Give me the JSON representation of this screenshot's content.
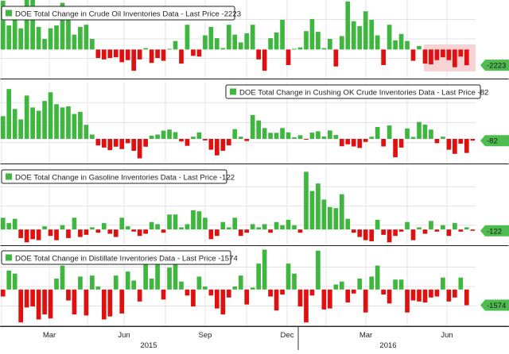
{
  "colors": {
    "positive": "#3fb73f",
    "negative": "#e01010",
    "highlight": "#f8d3d5",
    "grid": "#e3e3e3",
    "panel_border": "#1a1a1a",
    "text": "#222222",
    "badge_bg": "#4ebc4e",
    "badge_text": "#1a1a1a"
  },
  "x_axis": {
    "month_labels": [
      "Mar",
      "Jun",
      "Sep",
      "Dec",
      "Mar",
      "Jun"
    ],
    "year_labels": [
      "2015",
      "2016"
    ]
  },
  "chart_data": [
    {
      "type": "bar",
      "id": "crude",
      "title": "DOE Total Change in Crude Oil Inventories Data - Last Price -2223",
      "last_price_label": "-2223",
      "ylim": [
        -4000,
        7000
      ],
      "highlight_range": [
        49,
        55
      ],
      "values": [
        6900,
        3400,
        5500,
        3000,
        7000,
        7100,
        3200,
        1500,
        3000,
        3400,
        6600,
        4500,
        2100,
        3200,
        3500,
        1500,
        -1200,
        -1400,
        -1200,
        -1100,
        -1800,
        -1500,
        -3000,
        -1400,
        200,
        -1900,
        -1200,
        -1600,
        100,
        1200,
        -2000,
        3500,
        -900,
        -1000,
        2000,
        3200,
        1600,
        200,
        3500,
        2100,
        1000,
        2300,
        3500,
        -1400,
        -3000,
        1600,
        2400,
        4200,
        -2200,
        100,
        300,
        2600,
        4300,
        2500,
        200,
        1500,
        -2400,
        1900,
        6800,
        4000,
        3300,
        5400,
        4200,
        2000,
        -2200,
        3500,
        1300,
        2200,
        1200,
        -1600,
        500,
        -2000,
        -2100,
        -1500,
        -1100,
        -1500,
        -2500,
        -1000,
        -2223
      ]
    },
    {
      "type": "bar",
      "id": "cushing",
      "title": "DOE Total Change in Cushing OK Crude Inventories Data - Last Price -82",
      "last_price_label": "-82",
      "ylim": [
        -1100,
        2600
      ],
      "values": [
        1050,
        2300,
        1380,
        900,
        2000,
        1450,
        1300,
        1750,
        2150,
        1600,
        1450,
        1500,
        1150,
        1250,
        650,
        200,
        -300,
        -400,
        -520,
        -360,
        -470,
        -200,
        -550,
        -900,
        -360,
        150,
        200,
        380,
        430,
        310,
        -120,
        -320,
        100,
        300,
        -70,
        -500,
        -760,
        -550,
        -300,
        450,
        100,
        -100,
        1100,
        850,
        500,
        280,
        280,
        500,
        300,
        70,
        170,
        -40,
        290,
        350,
        110,
        390,
        180,
        -340,
        -250,
        -350,
        -420,
        -140,
        100,
        550,
        -350,
        620,
        -850,
        -400,
        480,
        90,
        780,
        660,
        430,
        -200,
        100,
        -500,
        -690,
        -220,
        -650,
        -82
      ]
    },
    {
      "type": "bar",
      "id": "gasoline",
      "title": "DOE Total Change in Gasoline Inventories Data - Last Price -122",
      "last_price_label": "-122",
      "ylim": [
        -1400,
        5800
      ],
      "values": [
        1100,
        600,
        1000,
        -800,
        -1200,
        -900,
        -1000,
        300,
        -600,
        -1000,
        400,
        -800,
        1100,
        -700,
        -500,
        200,
        -300,
        600,
        -400,
        -700,
        1100,
        300,
        -200,
        -600,
        -400,
        700,
        500,
        -300,
        1400,
        1400,
        200,
        500,
        1800,
        1700,
        1100,
        -900,
        -600,
        700,
        200,
        1100,
        -600,
        -300,
        500,
        200,
        500,
        -300,
        700,
        400,
        900,
        400,
        -300,
        5400,
        3600,
        4300,
        2800,
        2100,
        2000,
        3300,
        1000,
        -300,
        -700,
        -1000,
        -1100,
        900,
        -500,
        -1200,
        -600,
        -200,
        700,
        -1000,
        200,
        -400,
        800,
        -200,
        400,
        -600,
        600,
        -200,
        200,
        -122
      ]
    },
    {
      "type": "bar",
      "id": "distillate",
      "title": "DOE Total Change in Distillate Inventories Data - Last Price -1574",
      "last_price_label": "-1574",
      "ylim": [
        -3600,
        4200
      ],
      "values": [
        -700,
        1900,
        1600,
        -3300,
        -1800,
        -1700,
        -3000,
        -2500,
        -2900,
        1100,
        2400,
        -1100,
        -2500,
        1300,
        -2600,
        1400,
        300,
        -3000,
        -2700,
        1400,
        -2400,
        1800,
        900,
        -1200,
        2700,
        1100,
        2500,
        -1000,
        2200,
        2500,
        800,
        -600,
        -1700,
        1300,
        300,
        -600,
        -1900,
        -2500,
        -800,
        300,
        1400,
        -1500,
        200,
        2600,
        4000,
        -700,
        -2100,
        -500,
        2600,
        1600,
        -1700,
        -3300,
        -600,
        3900,
        -2000,
        -1900,
        500,
        800,
        -1300,
        -400,
        1100,
        -2300,
        1300,
        2400,
        -500,
        -1400,
        1000,
        1000,
        -2300,
        -1100,
        -1200,
        -1300,
        -800,
        -700,
        1200,
        -1200,
        -800,
        1200,
        -1574
      ]
    }
  ]
}
